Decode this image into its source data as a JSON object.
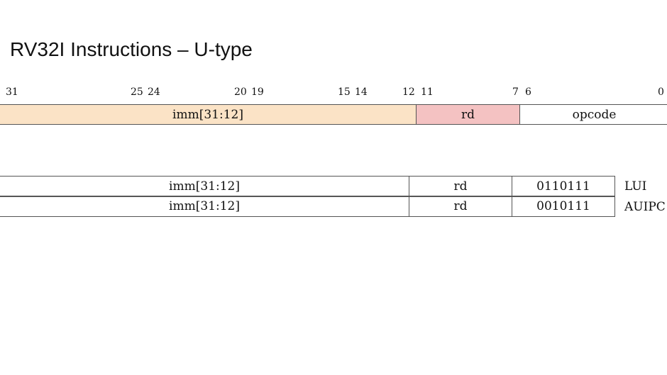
{
  "slide": {
    "title": "RV32I Instructions – U-type"
  },
  "bit_positions": [
    "31",
    "25",
    "24",
    "20",
    "19",
    "15",
    "14",
    "12",
    "11",
    "7",
    "6",
    "0"
  ],
  "format_fields": {
    "imm": "imm[31:12]",
    "rd": "rd",
    "opcode": "opcode"
  },
  "instructions": [
    {
      "imm": "imm[31:12]",
      "rd": "rd",
      "opcode": "0110111",
      "name": "LUI"
    },
    {
      "imm": "imm[31:12]",
      "rd": "rd",
      "opcode": "0010111",
      "name": "AUIPC"
    }
  ],
  "colors": {
    "imm_field": "#fbe3c6",
    "rd_field": "#f4c2c2"
  }
}
